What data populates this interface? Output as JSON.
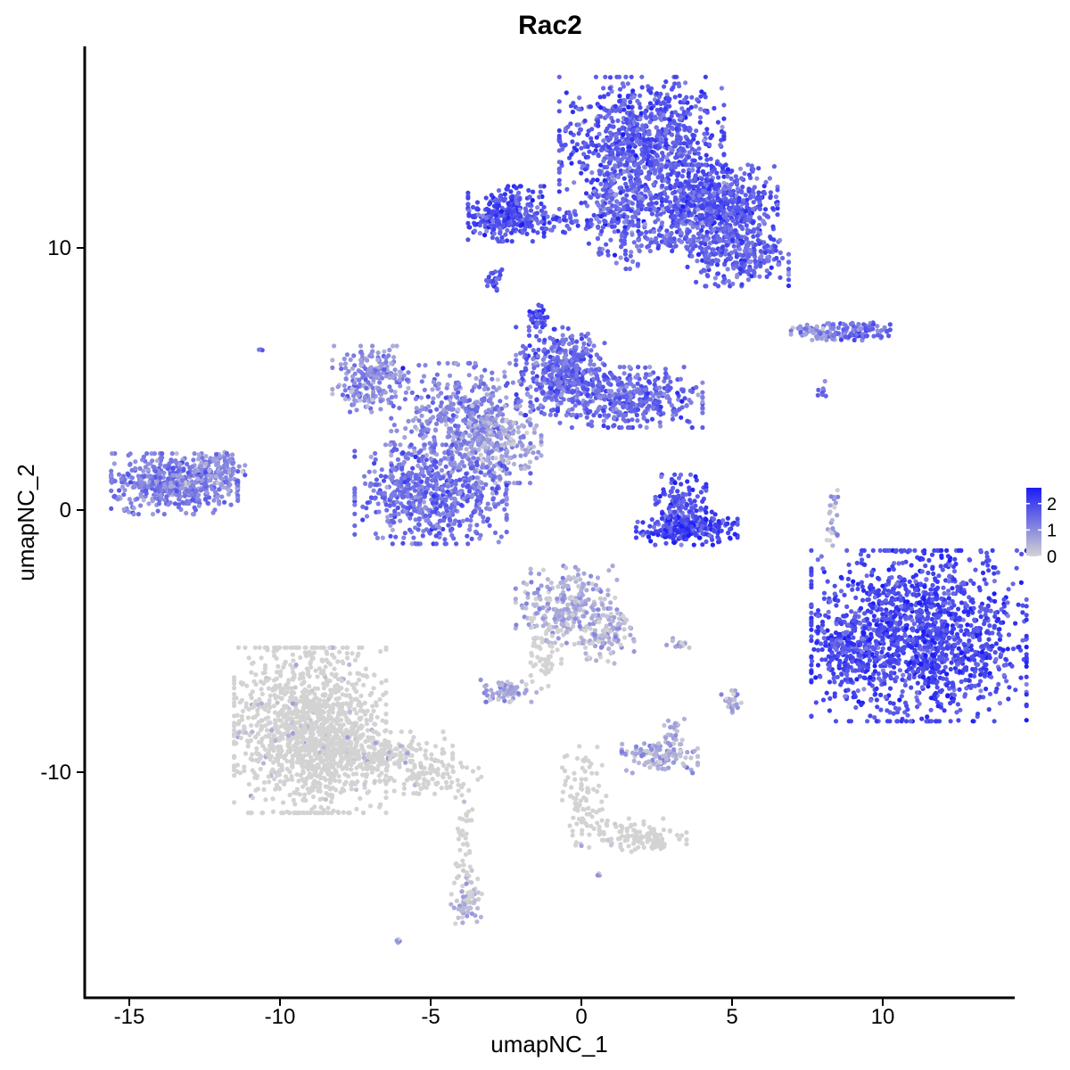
{
  "chart_data": {
    "type": "scatter",
    "title": "Rac2",
    "xlabel": "umapNC_1",
    "ylabel": "umapNC_2",
    "xlim": [
      -16.5,
      14.5
    ],
    "ylim": [
      -18.5,
      17.5
    ],
    "x_ticks": [
      -15,
      -10,
      -5,
      0,
      5,
      10
    ],
    "x_tick_labels": [
      "-15",
      "-10",
      "-5",
      "0",
      "5",
      "10"
    ],
    "y_ticks": [
      10,
      0,
      -10
    ],
    "y_tick_labels": [
      "10",
      "0",
      "-10"
    ],
    "grid": false,
    "legend": {
      "placement": "right",
      "type": "colorbar",
      "ticks": [
        2,
        1,
        0
      ],
      "tick_labels": [
        "2",
        "1",
        "0"
      ],
      "low_color": "#d3d3d3",
      "high_color": "#1c1cf5"
    },
    "expression_range": [
      0,
      2.6
    ],
    "clusters": [
      {
        "x": 2.0,
        "y": 14.0,
        "sx": 1.3,
        "sy": 1.2,
        "n": 900,
        "expr": 1.7
      },
      {
        "x": 4.2,
        "y": 11.7,
        "sx": 1.1,
        "sy": 0.7,
        "n": 650,
        "expr": 1.7
      },
      {
        "x": 5.2,
        "y": 9.8,
        "sx": 0.8,
        "sy": 0.6,
        "n": 300,
        "expr": 1.6
      },
      {
        "x": 1.3,
        "y": 11.3,
        "sx": 0.5,
        "sy": 1.0,
        "n": 180,
        "expr": 1.5
      },
      {
        "x": -2.5,
        "y": 11.3,
        "sx": 0.6,
        "sy": 0.5,
        "n": 280,
        "expr": 1.9
      },
      {
        "x": -1.0,
        "y": 11.0,
        "sx": 1.3,
        "sy": 0.2,
        "n": 110,
        "expr": 1.7
      },
      {
        "x": 3.0,
        "y": 10.3,
        "sx": 0.8,
        "sy": 0.2,
        "n": 60,
        "expr": 1.6
      },
      {
        "x": -2.9,
        "y": 8.8,
        "sx": 0.15,
        "sy": 0.2,
        "n": 25,
        "expr": 1.8
      },
      {
        "x": -1.4,
        "y": 7.4,
        "sx": 0.15,
        "sy": 0.2,
        "n": 35,
        "expr": 1.9
      },
      {
        "x": -0.7,
        "y": 5.3,
        "sx": 0.7,
        "sy": 0.8,
        "n": 420,
        "expr": 1.5
      },
      {
        "x": 1.5,
        "y": 4.3,
        "sx": 1.2,
        "sy": 0.55,
        "n": 420,
        "expr": 1.5
      },
      {
        "x": -7.0,
        "y": 5.0,
        "sx": 0.6,
        "sy": 0.6,
        "n": 220,
        "expr": 1.0
      },
      {
        "x": -4.0,
        "y": 3.5,
        "sx": 1.1,
        "sy": 1.0,
        "n": 420,
        "expr": 1.1
      },
      {
        "x": -2.8,
        "y": 2.5,
        "sx": 0.7,
        "sy": 0.7,
        "n": 220,
        "expr": 0.7
      },
      {
        "x": -5.0,
        "y": 0.6,
        "sx": 1.2,
        "sy": 0.9,
        "n": 650,
        "expr": 1.4
      },
      {
        "x": -13.5,
        "y": 1.0,
        "sx": 1.0,
        "sy": 0.55,
        "n": 520,
        "expr": 1.2
      },
      {
        "x": -12.0,
        "y": 1.6,
        "sx": 0.4,
        "sy": 0.4,
        "n": 90,
        "expr": 1.0
      },
      {
        "x": -10.6,
        "y": 6.1,
        "sx": 0.05,
        "sy": 0.05,
        "n": 3,
        "expr": 1.4
      },
      {
        "x": 3.3,
        "y": 0.3,
        "sx": 0.4,
        "sy": 0.5,
        "n": 110,
        "expr": 1.8
      },
      {
        "x": 3.5,
        "y": -0.7,
        "sx": 0.8,
        "sy": 0.3,
        "n": 260,
        "expr": 2.0
      },
      {
        "x": 7.9,
        "y": 6.8,
        "sx": 0.45,
        "sy": 0.15,
        "n": 70,
        "expr": 1.0
      },
      {
        "x": 9.3,
        "y": 6.8,
        "sx": 0.45,
        "sy": 0.2,
        "n": 90,
        "expr": 1.5
      },
      {
        "x": 8.0,
        "y": 4.6,
        "sx": 0.1,
        "sy": 0.15,
        "n": 8,
        "expr": 1.5
      },
      {
        "x": 11.2,
        "y": -4.8,
        "sx": 1.7,
        "sy": 1.55,
        "n": 1500,
        "expr": 1.95
      },
      {
        "x": 8.8,
        "y": -5.3,
        "sx": 0.45,
        "sy": 0.6,
        "n": 150,
        "expr": 1.9
      },
      {
        "x": -0.5,
        "y": -3.6,
        "sx": 0.8,
        "sy": 0.7,
        "n": 260,
        "expr": 0.5
      },
      {
        "x": 0.7,
        "y": -4.8,
        "sx": 0.5,
        "sy": 0.5,
        "n": 110,
        "expr": 0.4
      },
      {
        "x": -1.2,
        "y": -5.6,
        "sx": 0.3,
        "sy": 0.7,
        "n": 60,
        "expr": 0.2
      },
      {
        "x": -2.5,
        "y": -6.9,
        "sx": 0.4,
        "sy": 0.2,
        "n": 70,
        "expr": 0.6
      },
      {
        "x": 2.6,
        "y": -9.4,
        "sx": 0.6,
        "sy": 0.3,
        "n": 110,
        "expr": 0.6
      },
      {
        "x": 3.1,
        "y": -8.6,
        "sx": 0.2,
        "sy": 0.3,
        "n": 30,
        "expr": 0.5
      },
      {
        "x": 5.0,
        "y": -7.3,
        "sx": 0.2,
        "sy": 0.2,
        "n": 25,
        "expr": 0.5
      },
      {
        "x": -9.0,
        "y": -8.4,
        "sx": 1.2,
        "sy": 1.5,
        "n": 1300,
        "expr": 0.12
      },
      {
        "x": -7.0,
        "y": -9.4,
        "sx": 1.3,
        "sy": 0.45,
        "n": 260,
        "expr": 0.12
      },
      {
        "x": -5.0,
        "y": -10.2,
        "sx": 0.8,
        "sy": 0.3,
        "n": 90,
        "expr": 0.15
      },
      {
        "x": -3.8,
        "y": -14.8,
        "sx": 0.25,
        "sy": 0.5,
        "n": 70,
        "expr": 0.3
      },
      {
        "x": -3.9,
        "y": -12.5,
        "sx": 0.15,
        "sy": 1.0,
        "n": 40,
        "expr": 0.15
      },
      {
        "x": 0.1,
        "y": -10.9,
        "sx": 0.35,
        "sy": 0.9,
        "n": 80,
        "expr": 0.2
      },
      {
        "x": 1.6,
        "y": -12.4,
        "sx": 0.9,
        "sy": 0.3,
        "n": 110,
        "expr": 0.12
      },
      {
        "x": 2.5,
        "y": -12.7,
        "sx": 0.2,
        "sy": 0.15,
        "n": 30,
        "expr": 0.1
      },
      {
        "x": 3.2,
        "y": -5.1,
        "sx": 0.25,
        "sy": 0.1,
        "n": 15,
        "expr": 0.5
      },
      {
        "x": 8.3,
        "y": -0.3,
        "sx": 0.15,
        "sy": 0.6,
        "n": 25,
        "expr": 0.5
      },
      {
        "x": -6.1,
        "y": -16.4,
        "sx": 0.08,
        "sy": 0.05,
        "n": 4,
        "expr": 0.8
      },
      {
        "x": 0.6,
        "y": -13.9,
        "sx": 0.05,
        "sy": 0.05,
        "n": 3,
        "expr": 0.6
      }
    ]
  }
}
